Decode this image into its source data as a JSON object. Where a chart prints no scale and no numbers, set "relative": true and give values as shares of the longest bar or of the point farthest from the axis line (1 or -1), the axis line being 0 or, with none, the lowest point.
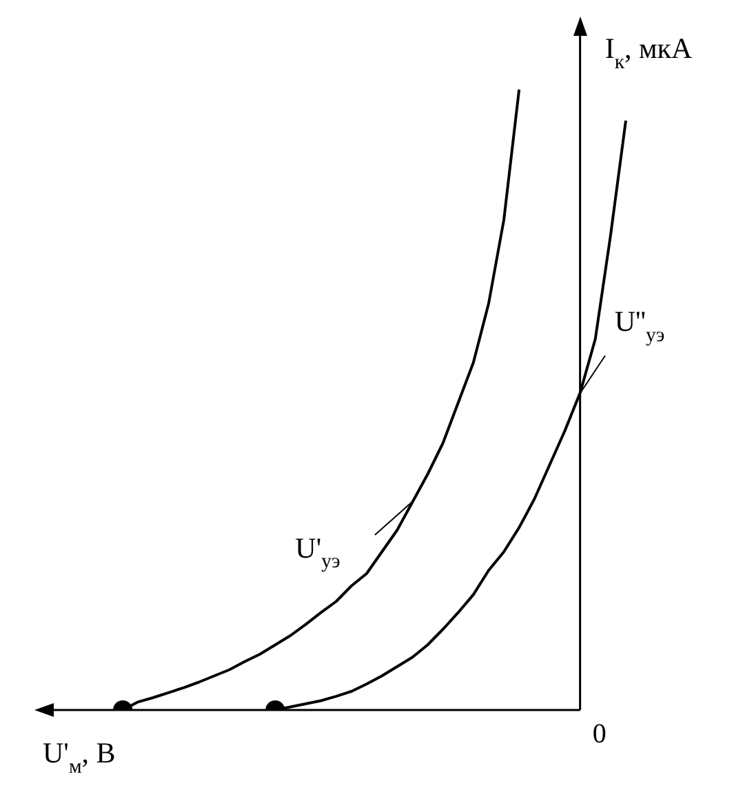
{
  "chart_data": {
    "type": "line",
    "relative": true,
    "xlabel": "U'$_{м}$, В",
    "ylabel": "I$_{к}$, мкА",
    "annotations": [
      "0"
    ],
    "categories": [
      null,
      null,
      null,
      null,
      null,
      null,
      null,
      null,
      null,
      null,
      null,
      null,
      null,
      null,
      null,
      null,
      null,
      null,
      null,
      null,
      null,
      null,
      null,
      null,
      null,
      null,
      null,
      null,
      null,
      null,
      null,
      null,
      null,
      null,
      null
    ],
    "series": [
      {
        "name": "U'$_{уэ}$",
        "color": "#000000",
        "values": [
          null,
          0,
          0.013,
          0.02,
          0.028,
          0.036,
          0.045,
          0.055,
          0.065,
          0.078,
          0.09,
          0.105,
          0.12,
          0.138,
          0.157,
          0.175,
          0.2,
          0.22,
          0.255,
          0.29,
          0.335,
          0.38,
          0.43,
          0.495,
          0.56,
          0.655,
          0.79,
          1,
          null,
          null,
          null,
          null,
          null,
          null,
          null
        ]
      },
      {
        "name": "U''$_{уэ}$",
        "color": "#000000",
        "values": [
          null,
          null,
          null,
          null,
          null,
          null,
          null,
          null,
          null,
          null,
          null,
          0,
          0.005,
          0.01,
          0.015,
          0.022,
          0.03,
          0.042,
          0.055,
          0.07,
          0.085,
          0.105,
          0.13,
          0.157,
          0.186,
          0.225,
          0.255,
          0.294,
          0.34,
          0.395,
          0.45,
          0.511,
          0.598,
          0.765,
          0.95
        ]
      }
    ]
  }
}
